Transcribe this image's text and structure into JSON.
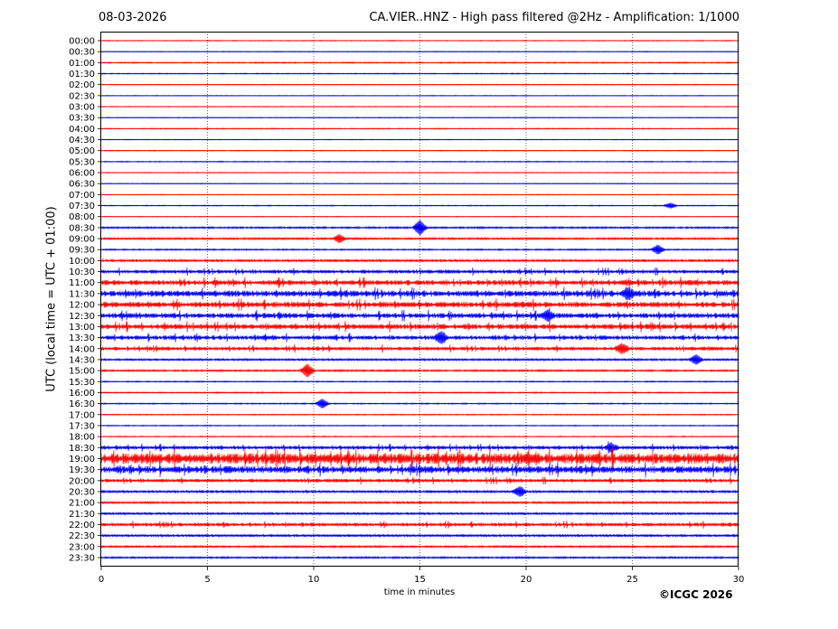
{
  "header": {
    "date": "08-03-2026",
    "title": "CA.VIER..HNZ - High pass filtered @2Hz - Amplification: 1/1000"
  },
  "footer": {
    "copyright": "©ICGC 2026"
  },
  "chart_data": {
    "type": "line",
    "title": "CA.VIER..HNZ - High pass filtered @2Hz - Amplification: 1/1000",
    "xlabel": "time in minutes",
    "ylabel": "UTC (local time = UTC + 01:00)",
    "xlim": [
      0,
      30
    ],
    "x_ticks": [
      0,
      5,
      10,
      15,
      20,
      25,
      30
    ],
    "x_gridlines": [
      5,
      10,
      15,
      20,
      25
    ],
    "grid": "vertical dotted",
    "trace_colors": [
      "#ff0000",
      "#0000ff"
    ],
    "rows": [
      "00:00",
      "00:30",
      "01:00",
      "01:30",
      "02:00",
      "02:30",
      "03:00",
      "03:30",
      "04:00",
      "04:30",
      "05:00",
      "05:30",
      "06:00",
      "06:30",
      "07:00",
      "07:30",
      "08:00",
      "08:30",
      "09:00",
      "09:30",
      "10:00",
      "10:30",
      "11:00",
      "11:30",
      "12:00",
      "12:30",
      "13:00",
      "13:30",
      "14:00",
      "14:30",
      "15:00",
      "15:30",
      "16:00",
      "16:30",
      "17:00",
      "17:30",
      "18:00",
      "18:30",
      "19:00",
      "19:30",
      "20:00",
      "20:30",
      "21:00",
      "21:30",
      "22:00",
      "22:30",
      "23:00",
      "23:30"
    ],
    "noise_level": [
      0.3,
      0.3,
      0.5,
      0.4,
      0.3,
      0.3,
      0.3,
      0.3,
      0.4,
      0.3,
      0.3,
      0.4,
      0.3,
      0.3,
      0.3,
      0.4,
      0.3,
      0.8,
      0.9,
      0.6,
      1.2,
      1.6,
      2.2,
      2.6,
      2.4,
      2.2,
      2.2,
      1.8,
      1.6,
      1.0,
      0.8,
      0.5,
      0.5,
      0.5,
      0.4,
      0.4,
      0.4,
      1.6,
      4.5,
      3.0,
      1.5,
      1.2,
      1.0,
      1.0,
      1.5,
      1.2,
      0.8,
      0.8
    ],
    "events": [
      {
        "row": "07:30",
        "minute": 26.8,
        "amp": 3
      },
      {
        "row": "08:30",
        "minute": 15.0,
        "amp": 8
      },
      {
        "row": "09:00",
        "minute": 11.2,
        "amp": 4
      },
      {
        "row": "09:30",
        "minute": 26.2,
        "amp": 5
      },
      {
        "row": "11:30",
        "minute": 24.8,
        "amp": 5
      },
      {
        "row": "12:30",
        "minute": 21.0,
        "amp": 5
      },
      {
        "row": "13:30",
        "minute": 16.0,
        "amp": 6
      },
      {
        "row": "14:00",
        "minute": 24.5,
        "amp": 5
      },
      {
        "row": "14:30",
        "minute": 28.0,
        "amp": 5
      },
      {
        "row": "15:00",
        "minute": 9.7,
        "amp": 7
      },
      {
        "row": "16:30",
        "minute": 10.4,
        "amp": 5
      },
      {
        "row": "18:30",
        "minute": 24.0,
        "amp": 4
      },
      {
        "row": "20:30",
        "minute": 19.7,
        "amp": 5
      }
    ]
  }
}
